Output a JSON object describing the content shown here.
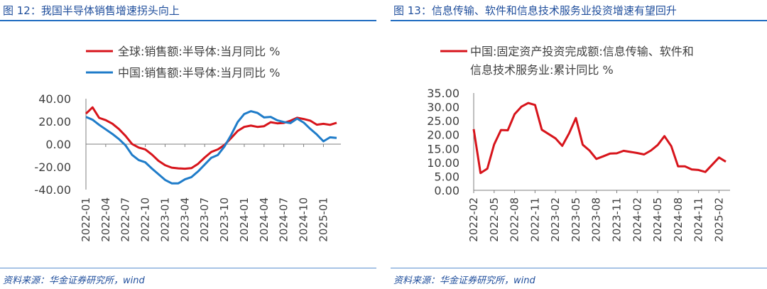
{
  "left": {
    "title": "图 12：我国半导体销售增速拐头向上",
    "source": "资料来源：华金证券研究所，wind",
    "chart_data": {
      "type": "line",
      "legend_position": "top",
      "ylim": [
        -40,
        40
      ],
      "y_ticks": [
        "40.00",
        "20.00",
        "0.00",
        "-20.00",
        "-40.00"
      ],
      "x_tick_labels": [
        "2022-01",
        "2022-04",
        "2022-07",
        "2022-10",
        "2023-01",
        "2023-04",
        "2023-07",
        "2023-10",
        "2024-01",
        "2024-04",
        "2024-07",
        "2024-10",
        "2025-01"
      ],
      "colors": {
        "global": "#d7141b",
        "china": "#1f7cc9"
      },
      "series": [
        {
          "name": "全球:销售额:半导体:当月同比 %",
          "x": [
            "2022-01",
            "2022-02",
            "2022-03",
            "2022-04",
            "2022-05",
            "2022-06",
            "2022-07",
            "2022-08",
            "2022-09",
            "2022-10",
            "2022-11",
            "2022-12",
            "2023-01",
            "2023-02",
            "2023-03",
            "2023-04",
            "2023-05",
            "2023-06",
            "2023-07",
            "2023-08",
            "2023-09",
            "2023-10",
            "2023-11",
            "2023-12",
            "2024-01",
            "2024-02",
            "2024-03",
            "2024-04",
            "2024-05",
            "2024-06",
            "2024-07",
            "2024-08",
            "2024-09",
            "2024-10",
            "2024-11",
            "2024-12",
            "2025-01",
            "2025-02",
            "2025-03"
          ],
          "values": [
            26.8,
            32.4,
            23.1,
            21.1,
            18.0,
            13.3,
            7.3,
            0.1,
            -3.0,
            -4.6,
            -9.2,
            -14.7,
            -18.5,
            -20.7,
            -21.3,
            -21.6,
            -21.1,
            -17.3,
            -11.8,
            -6.9,
            -4.6,
            -0.7,
            5.3,
            11.6,
            15.2,
            16.3,
            15.2,
            15.8,
            19.3,
            18.3,
            18.7,
            20.6,
            23.2,
            22.1,
            20.7,
            17.1,
            17.9,
            17.0,
            18.8
          ]
        },
        {
          "name": "中国:销售额:半导体:当月同比 %",
          "x": [
            "2022-01",
            "2022-02",
            "2022-03",
            "2022-04",
            "2022-05",
            "2022-06",
            "2022-07",
            "2022-08",
            "2022-09",
            "2022-10",
            "2022-11",
            "2022-12",
            "2023-01",
            "2023-02",
            "2023-03",
            "2023-04",
            "2023-05",
            "2023-06",
            "2023-07",
            "2023-08",
            "2023-09",
            "2023-10",
            "2023-11",
            "2023-12",
            "2024-01",
            "2024-02",
            "2024-03",
            "2024-04",
            "2024-05",
            "2024-06",
            "2024-07",
            "2024-08",
            "2024-09",
            "2024-10",
            "2024-11",
            "2024-12",
            "2025-01",
            "2025-02",
            "2025-03"
          ],
          "values": [
            24.0,
            21.5,
            17.0,
            13.0,
            9.0,
            4.5,
            -1.0,
            -9.5,
            -14.0,
            -16.0,
            -21.5,
            -26.5,
            -31.5,
            -34.5,
            -34.5,
            -31.0,
            -29.0,
            -24.0,
            -18.0,
            -12.0,
            -9.5,
            -2.0,
            8.0,
            19.5,
            26.5,
            29.0,
            27.5,
            23.5,
            24.0,
            21.0,
            19.5,
            18.5,
            22.5,
            19.0,
            13.5,
            8.5,
            2.5,
            6.0,
            5.5
          ]
        }
      ]
    }
  },
  "right": {
    "title": "图 13：信息传输、软件和信息技术服务业投资增速有望回升",
    "source": "资料来源：华金证券研究所，wind",
    "chart_data": {
      "type": "line",
      "legend_position": "top",
      "ylim": [
        0,
        35
      ],
      "y_ticks": [
        "35.00",
        "30.00",
        "25.00",
        "20.00",
        "15.00",
        "10.00",
        "5.00",
        "0.00"
      ],
      "x_tick_labels": [
        "2022-02",
        "2022-05",
        "2022-08",
        "2022-11",
        "2023-02",
        "2023-05",
        "2023-08",
        "2023-11",
        "2024-02",
        "2024-05",
        "2024-08",
        "2024-11",
        "2025-02"
      ],
      "colors": {
        "line": "#d7141b"
      },
      "series": [
        {
          "name_lines": [
            "中国:固定资产投资完成额:信息传输、软件和",
            "信息技术服务业:累计同比 %"
          ],
          "x": [
            "2022-02",
            "2022-03",
            "2022-04",
            "2022-05",
            "2022-06",
            "2022-07",
            "2022-08",
            "2022-09",
            "2022-10",
            "2022-11",
            "2022-12",
            "2023-02",
            "2023-03",
            "2023-04",
            "2023-05",
            "2023-06",
            "2023-07",
            "2023-08",
            "2023-09",
            "2023-10",
            "2023-11",
            "2023-12",
            "2024-02",
            "2024-03",
            "2024-04",
            "2024-05",
            "2024-06",
            "2024-07",
            "2024-08",
            "2024-09",
            "2024-10",
            "2024-11",
            "2024-12",
            "2025-02",
            "2025-03"
          ],
          "values": [
            22.0,
            6.2,
            7.8,
            16.5,
            21.7,
            21.6,
            27.4,
            30.1,
            31.4,
            30.7,
            21.8,
            18.7,
            16.0,
            20.5,
            26.0,
            16.4,
            14.3,
            11.3,
            12.2,
            13.2,
            13.3,
            14.2,
            13.4,
            12.9,
            14.3,
            16.3,
            19.5,
            15.9,
            8.6,
            8.6,
            7.5,
            7.3,
            6.6,
            11.8,
            10.3
          ]
        }
      ]
    }
  }
}
